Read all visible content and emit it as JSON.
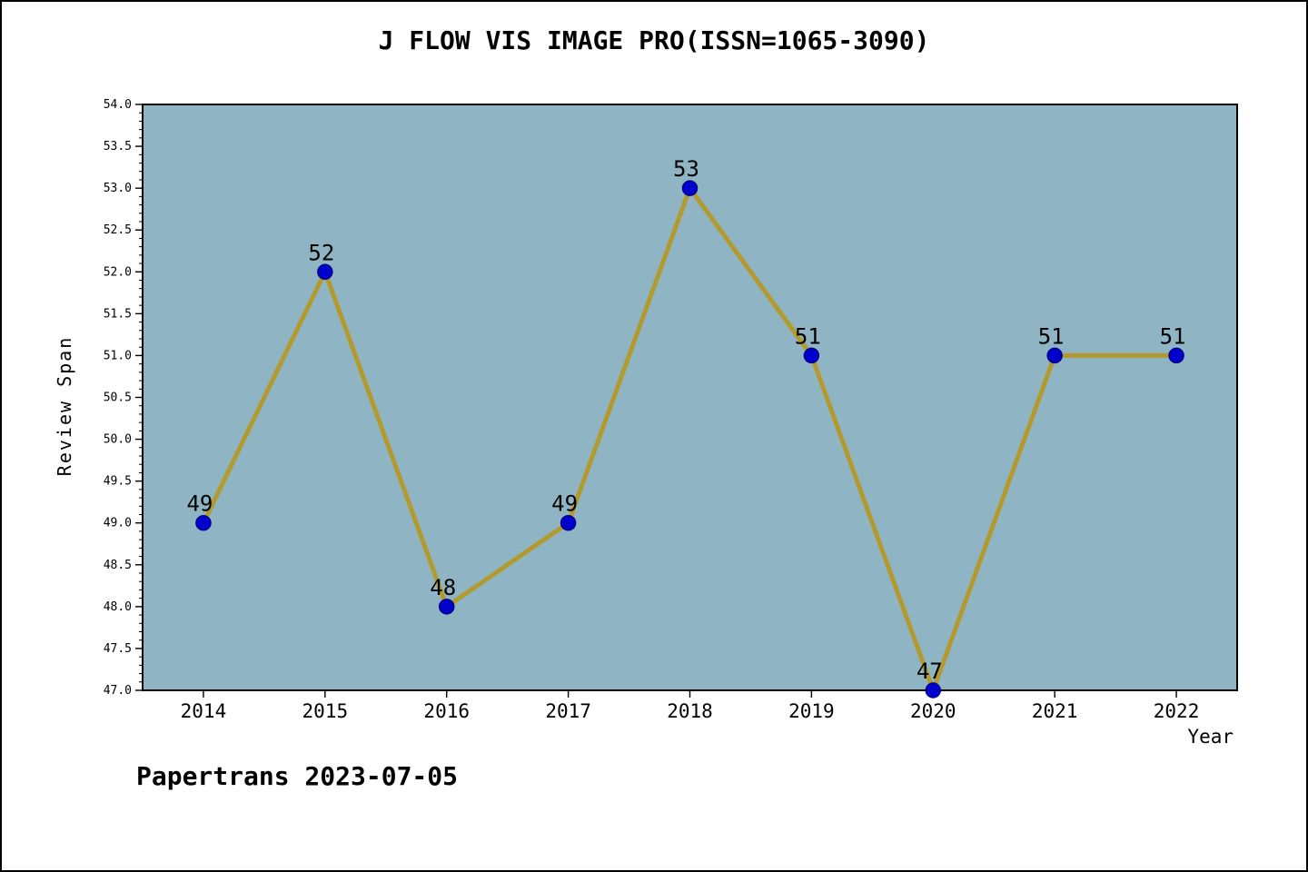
{
  "window": {
    "background": "#ffffff",
    "border_color": "#000000"
  },
  "chart_data": {
    "type": "line",
    "title": "J FLOW VIS IMAGE PRO(ISSN=1065-3090)",
    "xlabel": "Year",
    "ylabel": "Review Span",
    "x": [
      2014,
      2015,
      2016,
      2017,
      2018,
      2019,
      2020,
      2021,
      2022
    ],
    "values": [
      49,
      52,
      48,
      49,
      53,
      51,
      47,
      51,
      51
    ],
    "point_labels": [
      "49",
      "52",
      "48",
      "49",
      "53",
      "51",
      "47",
      "51",
      "51"
    ],
    "xlim": [
      2013.5,
      2022.5
    ],
    "ylim": [
      47.0,
      54.0
    ],
    "ytick_step": 0.5,
    "y_minor_step": 0.1,
    "grid": false,
    "legend_position": "none",
    "plot_bg": "#8fb5c5",
    "line_color": "#b39a2f",
    "line_width": 5,
    "marker_fill": "#0000cd",
    "marker_edge": "#00008b",
    "marker_radius": 8,
    "axis_color": "#000000"
  },
  "caption": "Papertrans 2023-07-05"
}
